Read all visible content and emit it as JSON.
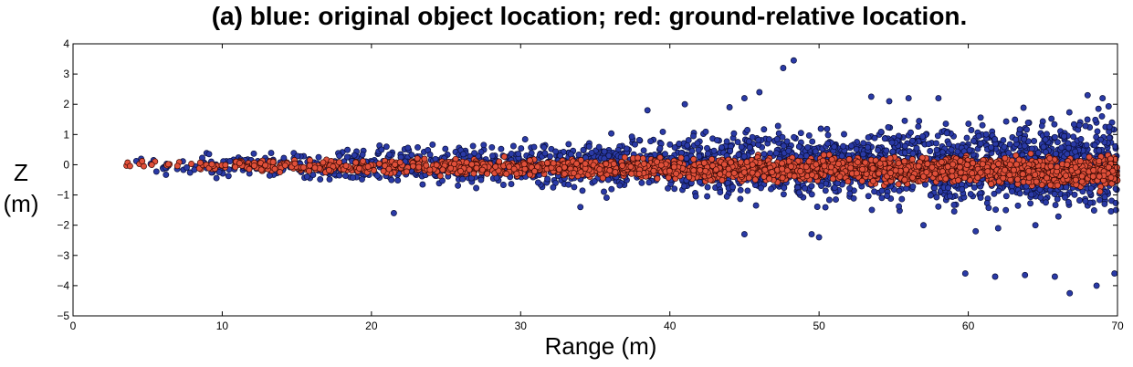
{
  "chart_data": {
    "type": "scatter",
    "title": "(a) blue: original object location; red: ground-relative location.",
    "xlabel": "Range (m)",
    "ylabel_lines": [
      "Z",
      "(m)"
    ],
    "xlim": [
      0,
      70
    ],
    "ylim": [
      -5,
      4
    ],
    "x_ticks": [
      0,
      10,
      20,
      30,
      40,
      50,
      60,
      70
    ],
    "y_ticks": [
      4,
      3,
      2,
      1,
      0,
      -1,
      -2,
      -3,
      -4,
      -5
    ],
    "grid": false,
    "legend": "none (colors described in title)",
    "series": [
      {
        "color": "#2a3aa6",
        "edge_color": "#0a0f3a",
        "spread_model": {
          "center_z": 0,
          "envelope_start": [
            2.5,
            0.2
          ],
          "envelope_end": [
            70,
            1.3
          ]
        },
        "outliers": [
          [
            48.3,
            3.45
          ],
          [
            47.6,
            3.2
          ],
          [
            46.0,
            2.4
          ],
          [
            45.0,
            2.2
          ],
          [
            44.0,
            1.9
          ],
          [
            53.5,
            2.25
          ],
          [
            56.0,
            2.2
          ],
          [
            54.7,
            2.1
          ],
          [
            58.0,
            2.2
          ],
          [
            68.0,
            2.3
          ],
          [
            69.0,
            2.2
          ],
          [
            50.0,
            -2.4
          ],
          [
            49.5,
            -2.3
          ],
          [
            45.0,
            -2.3
          ],
          [
            60.5,
            -2.2
          ],
          [
            62.0,
            -2.1
          ],
          [
            59.8,
            -3.6
          ],
          [
            61.8,
            -3.7
          ],
          [
            63.8,
            -3.65
          ],
          [
            65.8,
            -3.7
          ],
          [
            66.8,
            -4.25
          ],
          [
            68.6,
            -4.0
          ],
          [
            69.8,
            -3.6
          ],
          [
            69.9,
            -1.5
          ],
          [
            21.5,
            -1.6
          ],
          [
            34.0,
            -1.4
          ],
          [
            57.0,
            -2.0
          ],
          [
            64.5,
            -2.0
          ],
          [
            38.5,
            1.8
          ],
          [
            41.0,
            2.0
          ]
        ]
      },
      {
        "color": "#e0503a",
        "edge_color": "#3a0a05",
        "spread_model": {
          "center_z_start": 0,
          "center_z_end": -0.22,
          "envelope_start": [
            2.5,
            0.12
          ],
          "envelope_end": [
            70,
            0.45
          ]
        },
        "outliers": []
      }
    ]
  }
}
